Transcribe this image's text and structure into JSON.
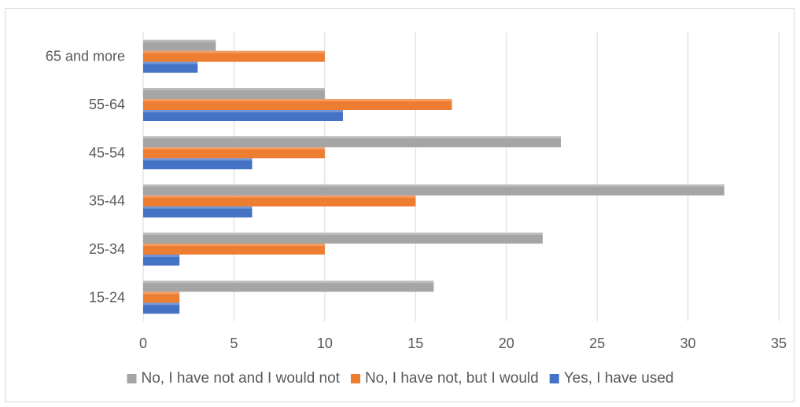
{
  "chart_data": {
    "type": "bar",
    "orientation": "horizontal",
    "categories": [
      "15-24",
      "25-34",
      "35-44",
      "45-54",
      "55-64",
      "65 and more"
    ],
    "series": [
      {
        "name": "Yes, I have used",
        "color": "#4472c4",
        "values": [
          2,
          2,
          6,
          6,
          11,
          3
        ]
      },
      {
        "name": "No, I have not, but I would",
        "color": "#ed7d31",
        "values": [
          2,
          10,
          15,
          10,
          17,
          10
        ]
      },
      {
        "name": "No, I have not and I would not",
        "color": "#a5a5a5",
        "values": [
          16,
          22,
          32,
          23,
          10,
          4
        ]
      }
    ],
    "legend_order": [
      "No, I have not and I would not",
      "No, I have not, but I would",
      "Yes, I have used"
    ],
    "xlim": [
      0,
      35
    ],
    "xticks": [
      "0",
      "5",
      "10",
      "15",
      "20",
      "25",
      "30",
      "35"
    ],
    "grid": "vertical",
    "legend_position": "bottom"
  }
}
